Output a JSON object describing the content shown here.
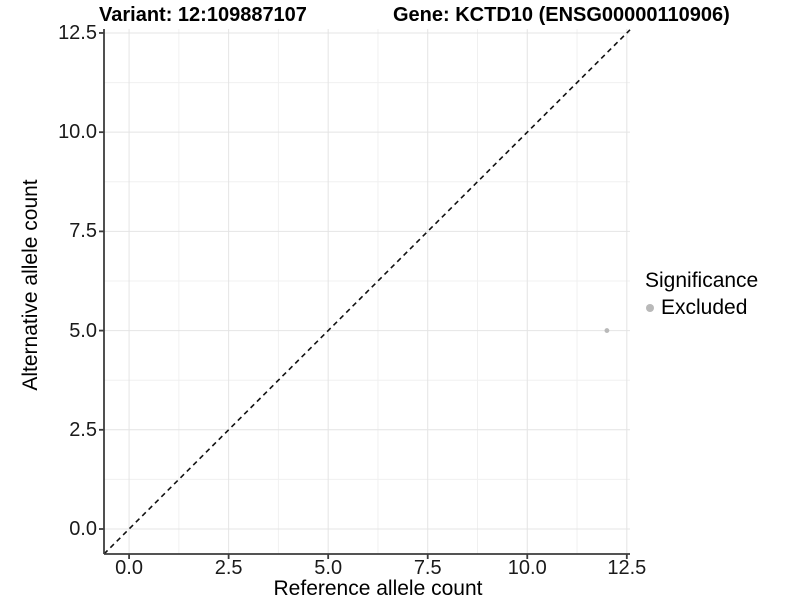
{
  "chart_data": {
    "type": "scatter",
    "title_left": "Variant: 12:109887107",
    "title_right": "Gene: KCTD10 (ENSG00000110906)",
    "xlabel": "Reference allele count",
    "ylabel": "Alternative allele count",
    "xlim": [
      -0.63,
      12.58
    ],
    "ylim": [
      -0.63,
      12.6
    ],
    "x_ticks": [
      0.0,
      2.5,
      5.0,
      7.5,
      10.0,
      12.5
    ],
    "y_ticks": [
      0.0,
      2.5,
      5.0,
      7.5,
      10.0,
      12.5
    ],
    "x_tick_labels": [
      "0.0",
      "2.5",
      "5.0",
      "7.5",
      "10.0",
      "12.5"
    ],
    "y_tick_labels": [
      "0.0",
      "2.5",
      "5.0",
      "7.5",
      "10.0",
      "12.5"
    ],
    "minor_grid_step": 1.25,
    "grid": {
      "show_major": true,
      "show_minor": true,
      "major_color": "#e4e4e4",
      "minor_color": "#f0f0f0"
    },
    "axis_color": "#3c3c3c",
    "series": [
      {
        "name": "Excluded",
        "color": "#b9b9b9",
        "point_radius": 2.4,
        "points": [
          {
            "x": 12,
            "y": 5
          }
        ]
      }
    ],
    "reference_line": {
      "type": "identity",
      "slope": 1,
      "intercept": 0,
      "style": "dashed",
      "color": "#111111"
    },
    "legend": {
      "title": "Significance",
      "position": "right",
      "entries": [
        {
          "label": "Excluded",
          "color": "#b9b9b9",
          "swatch_radius": 4
        }
      ]
    }
  }
}
